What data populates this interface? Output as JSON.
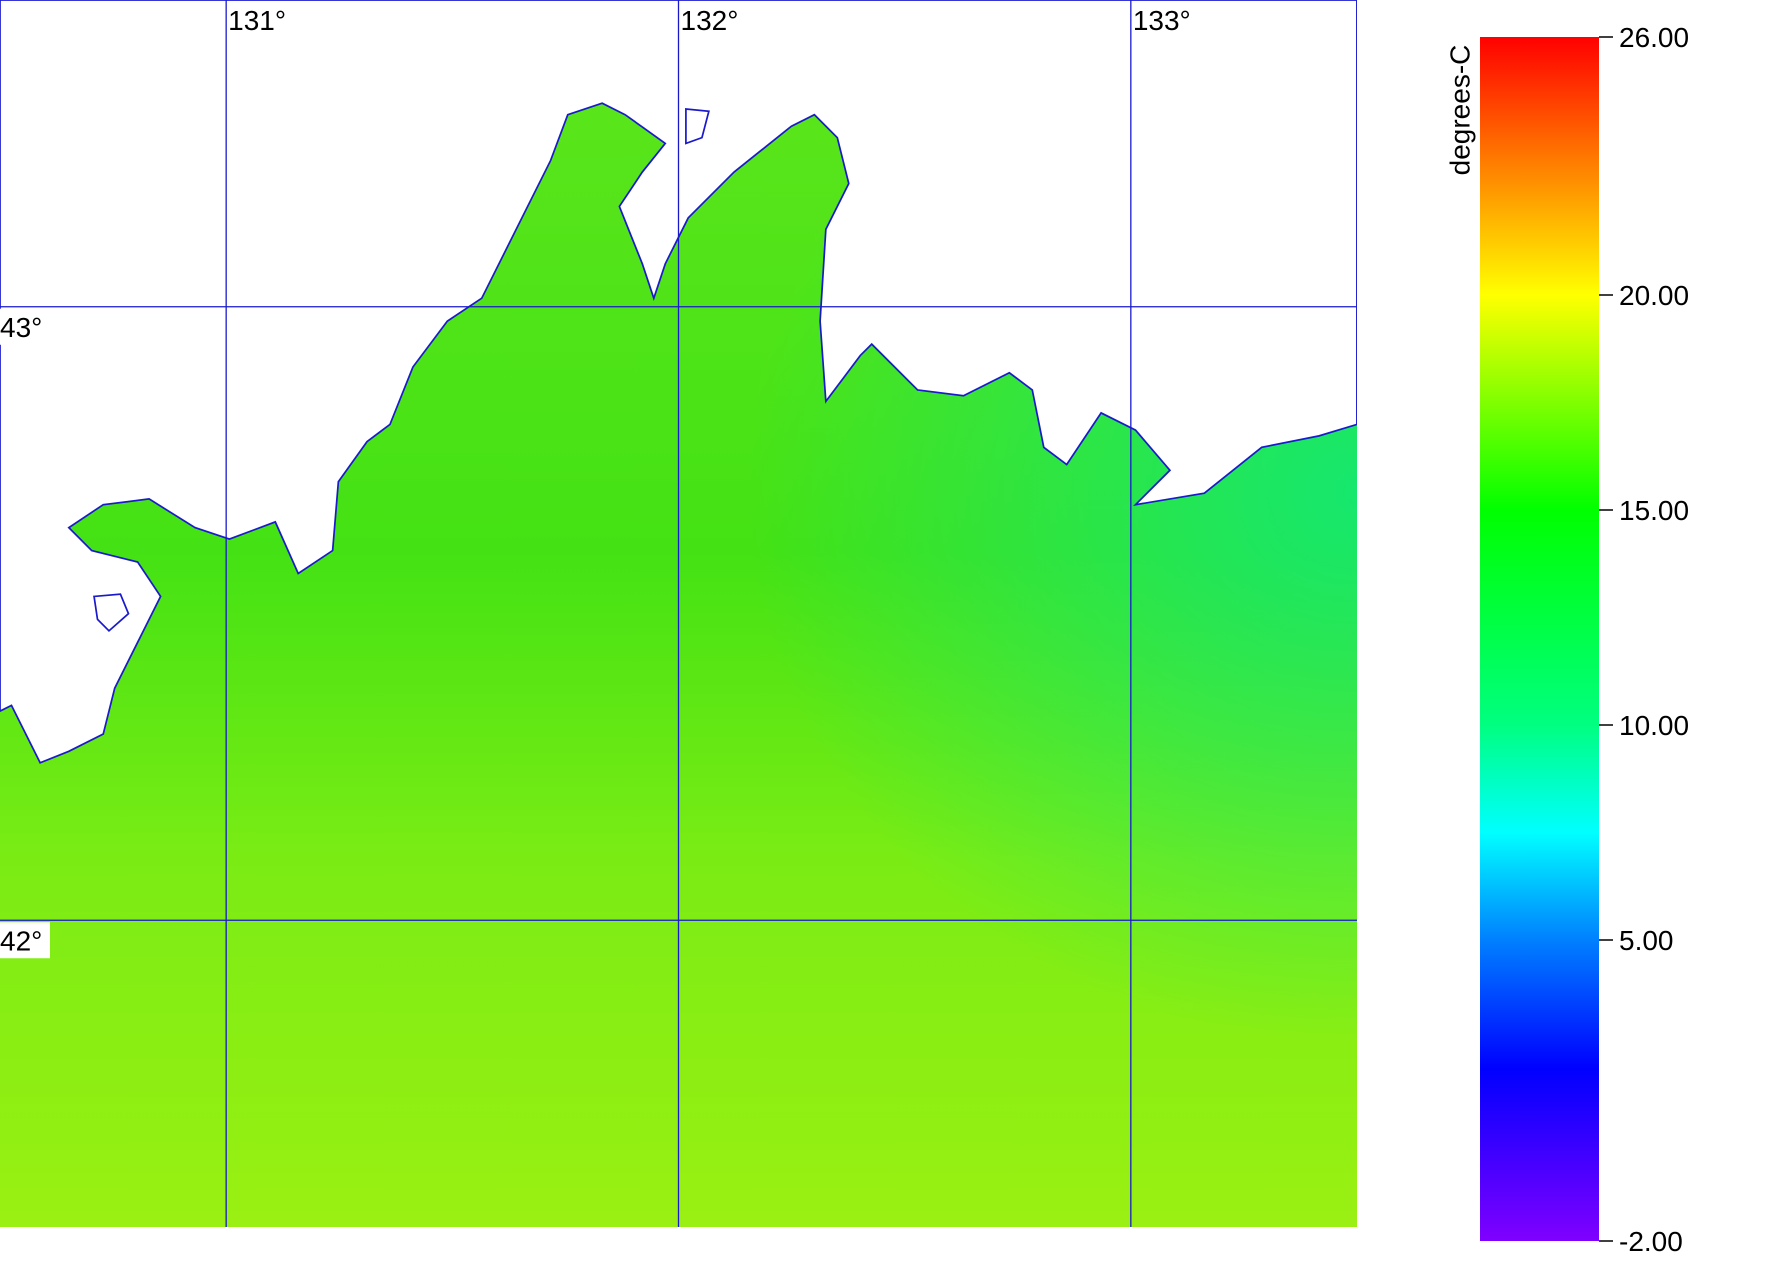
{
  "map": {
    "lon_range": [
      130.5,
      133.5
    ],
    "lat_range": [
      41.5,
      43.5
    ],
    "lon_lines": [
      {
        "value": 131,
        "label": "131°"
      },
      {
        "value": 132,
        "label": "132°"
      },
      {
        "value": 133,
        "label": "133°"
      }
    ],
    "lat_lines": [
      {
        "value": 43,
        "label": "43°"
      },
      {
        "value": 42,
        "label": "42°"
      }
    ],
    "grid_color": "#1a1acc",
    "land_color": "#ffffff",
    "coast_color": "#1a1acc"
  },
  "colorbar": {
    "label": "degrees-C",
    "range": [
      -2,
      26
    ],
    "ticks": [
      {
        "value": 26,
        "label": "26.00"
      },
      {
        "value": 20,
        "label": "20.00"
      },
      {
        "value": 15,
        "label": "15.00"
      },
      {
        "value": 10,
        "label": "10.00"
      },
      {
        "value": 5,
        "label": "5.00"
      },
      {
        "value": -2,
        "label": "-2.00"
      }
    ],
    "stops": [
      {
        "value": -2,
        "color": "#8000ff"
      },
      {
        "value": 2,
        "color": "#0000ff"
      },
      {
        "value": 5,
        "color": "#0080ff"
      },
      {
        "value": 7.5,
        "color": "#00ffff"
      },
      {
        "value": 10,
        "color": "#00ff80"
      },
      {
        "value": 15,
        "color": "#00ff00"
      },
      {
        "value": 20,
        "color": "#ffff00"
      },
      {
        "value": 23,
        "color": "#ff8000"
      },
      {
        "value": 26,
        "color": "#ff0000"
      }
    ]
  }
}
